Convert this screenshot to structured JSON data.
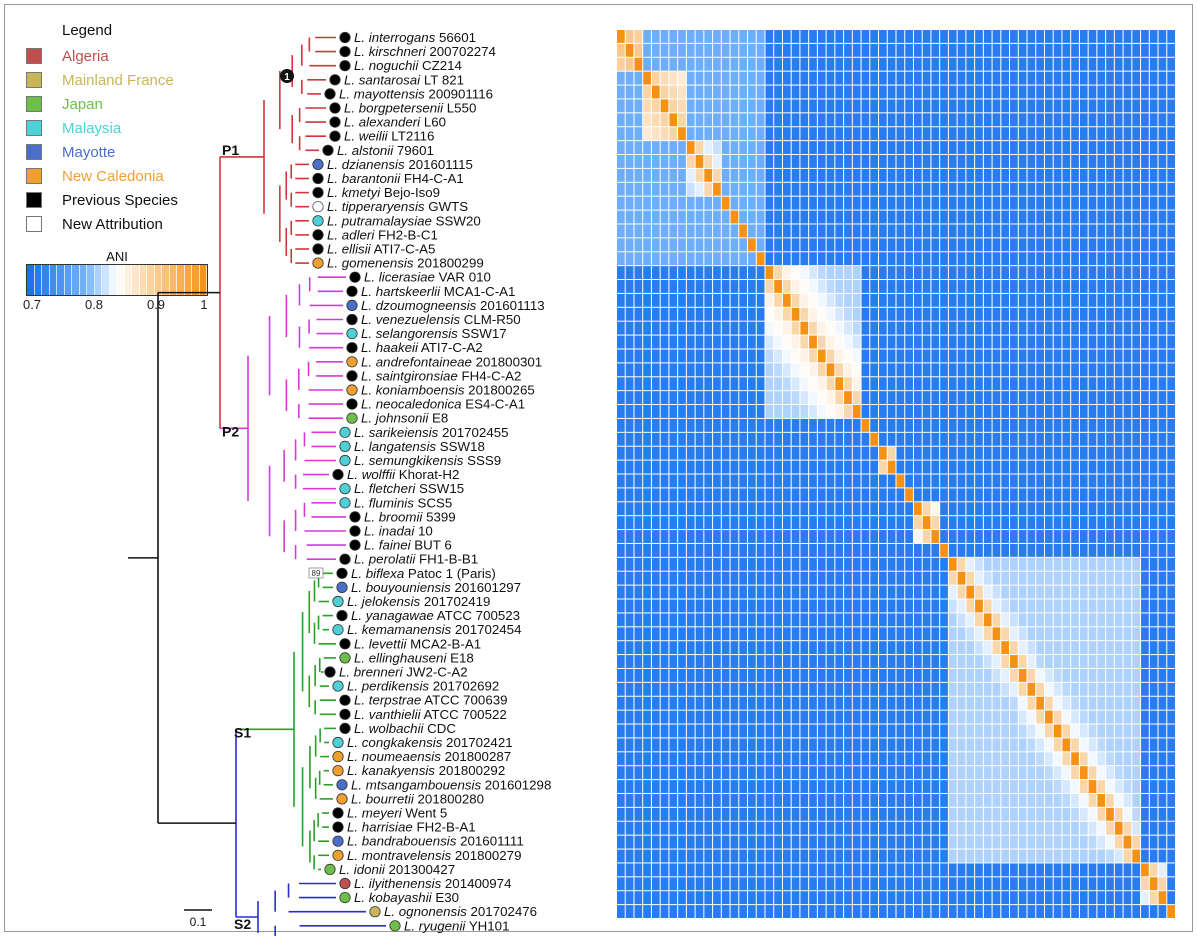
{
  "legend": {
    "title": "Legend",
    "entries": [
      {
        "label": "Algeria",
        "color": "#c0504d",
        "text_color": "#c0504d"
      },
      {
        "label": "Mainland France",
        "color": "#c8b55a",
        "text_color": "#c8b55a"
      },
      {
        "label": "Japan",
        "color": "#6cc04a",
        "text_color": "#6cc04a"
      },
      {
        "label": "Malaysia",
        "color": "#4fcfd6",
        "text_color": "#4fcfd6"
      },
      {
        "label": "Mayotte",
        "color": "#4a6fc8",
        "text_color": "#4a6fc8"
      },
      {
        "label": "New Caledonia",
        "color": "#f0a030",
        "text_color": "#f0a030"
      },
      {
        "label": "Previous Species",
        "color": "#000000",
        "text_color": "#111111"
      },
      {
        "label": "New Attribution",
        "color": "#ffffff",
        "text_color": "#111111"
      }
    ]
  },
  "ani_scale": {
    "title": "ANI",
    "tick_labels": [
      "0.7",
      "0.8",
      "0.9",
      "1"
    ],
    "min": 0.7,
    "max": 1.0
  },
  "clade_labels": [
    "P1",
    "P2",
    "S1",
    "S2"
  ],
  "node_marker": "1",
  "bootstrap_label": "89",
  "scale_bar_label": "0.1",
  "clade_colors": {
    "P1": "#d0363b",
    "P2": "#d63ad6",
    "S1": "#2aa02a",
    "S2": "#2a2ad6",
    "root": "#111111"
  },
  "species": [
    {
      "genus": "L.",
      "name": "interrogans",
      "strain": "56601",
      "dot": "#000000"
    },
    {
      "genus": "L.",
      "name": "kirschneri",
      "strain": "200702274",
      "dot": "#000000"
    },
    {
      "genus": "L.",
      "name": "noguchii",
      "strain": "CZ214",
      "dot": "#000000"
    },
    {
      "genus": "L.",
      "name": "santarosai",
      "strain": "LT 821",
      "dot": "#000000"
    },
    {
      "genus": "L.",
      "name": "mayottensis",
      "strain": "200901116",
      "dot": "#000000"
    },
    {
      "genus": "L.",
      "name": "borgpetersenii",
      "strain": "L550",
      "dot": "#000000"
    },
    {
      "genus": "L.",
      "name": "alexanderi",
      "strain": "L60",
      "dot": "#000000"
    },
    {
      "genus": "L.",
      "name": "weilii",
      "strain": "LT2116",
      "dot": "#000000"
    },
    {
      "genus": "L.",
      "name": "alstonii",
      "strain": "79601",
      "dot": "#000000"
    },
    {
      "genus": "L.",
      "name": "dzianensis",
      "strain": "201601115",
      "dot": "#4a6fc8"
    },
    {
      "genus": "L.",
      "name": "barantonii",
      "strain": "FH4-C-A1",
      "dot": "#000000"
    },
    {
      "genus": "L.",
      "name": "kmetyi",
      "strain": "Bejo-Iso9",
      "dot": "#000000"
    },
    {
      "genus": "L.",
      "name": "tipperaryensis",
      "strain": "GWTS",
      "dot": "#ffffff"
    },
    {
      "genus": "L.",
      "name": "putramalaysiae",
      "strain": "SSW20",
      "dot": "#4fcfd6"
    },
    {
      "genus": "L.",
      "name": "adleri",
      "strain": "FH2-B-C1",
      "dot": "#000000"
    },
    {
      "genus": "L.",
      "name": "ellisii",
      "strain": "ATI7-C-A5",
      "dot": "#000000"
    },
    {
      "genus": "L.",
      "name": "gomenensis",
      "strain": "201800299",
      "dot": "#f0a030"
    },
    {
      "genus": "L.",
      "name": "licerasiae",
      "strain": "VAR 010",
      "dot": "#000000"
    },
    {
      "genus": "L.",
      "name": "hartskeerlii",
      "strain": "MCA1-C-A1",
      "dot": "#000000"
    },
    {
      "genus": "L.",
      "name": "dzoumogneensis",
      "strain": "201601113",
      "dot": "#4a6fc8"
    },
    {
      "genus": "L.",
      "name": "venezuelensis",
      "strain": "CLM-R50",
      "dot": "#000000"
    },
    {
      "genus": "L.",
      "name": "selangorensis",
      "strain": "SSW17",
      "dot": "#4fcfd6"
    },
    {
      "genus": "L.",
      "name": "haakeii",
      "strain": "ATI7-C-A2",
      "dot": "#000000"
    },
    {
      "genus": "L.",
      "name": "andrefontaineae",
      "strain": "201800301",
      "dot": "#f0a030"
    },
    {
      "genus": "L.",
      "name": "saintgironsiae",
      "strain": "FH4-C-A2",
      "dot": "#000000"
    },
    {
      "genus": "L.",
      "name": "koniamboensis",
      "strain": "201800265",
      "dot": "#f0a030"
    },
    {
      "genus": "L.",
      "name": "neocaledonica",
      "strain": "ES4-C-A1",
      "dot": "#000000"
    },
    {
      "genus": "L.",
      "name": "johnsonii",
      "strain": "E8",
      "dot": "#6cc04a"
    },
    {
      "genus": "L.",
      "name": "sarikeiensis",
      "strain": "201702455",
      "dot": "#4fcfd6"
    },
    {
      "genus": "L.",
      "name": "langatensis",
      "strain": "SSW18",
      "dot": "#4fcfd6"
    },
    {
      "genus": "L.",
      "name": "semungkikensis",
      "strain": "SSS9",
      "dot": "#4fcfd6"
    },
    {
      "genus": "L.",
      "name": "wolffii",
      "strain": "Khorat-H2",
      "dot": "#000000"
    },
    {
      "genus": "L.",
      "name": "fletcheri",
      "strain": "SSW15",
      "dot": "#4fcfd6"
    },
    {
      "genus": "L.",
      "name": "fluminis",
      "strain": "SCS5",
      "dot": "#4fcfd6"
    },
    {
      "genus": "L.",
      "name": "broomii",
      "strain": "5399",
      "dot": "#000000"
    },
    {
      "genus": "L.",
      "name": "inadai",
      "strain": "10",
      "dot": "#000000"
    },
    {
      "genus": "L.",
      "name": "fainei",
      "strain": "BUT 6",
      "dot": "#000000"
    },
    {
      "genus": "L.",
      "name": "perolatii",
      "strain": "FH1-B-B1",
      "dot": "#000000"
    },
    {
      "genus": "L.",
      "name": "biflexa",
      "strain": "Patoc 1 (Paris)",
      "dot": "#000000"
    },
    {
      "genus": "L.",
      "name": "bouyouniensis",
      "strain": "201601297",
      "dot": "#4a6fc8"
    },
    {
      "genus": "L.",
      "name": "jelokensis",
      "strain": "201702419",
      "dot": "#4fcfd6"
    },
    {
      "genus": "L.",
      "name": "yanagawae",
      "strain": "ATCC 700523",
      "dot": "#000000"
    },
    {
      "genus": "L.",
      "name": "kemamanensis",
      "strain": "201702454",
      "dot": "#4fcfd6"
    },
    {
      "genus": "L.",
      "name": "levettii",
      "strain": "MCA2-B-A1",
      "dot": "#000000"
    },
    {
      "genus": "L.",
      "name": "ellinghauseni",
      "strain": "E18",
      "dot": "#6cc04a"
    },
    {
      "genus": "L.",
      "name": "brenneri",
      "strain": "JW2-C-A2",
      "dot": "#000000"
    },
    {
      "genus": "L.",
      "name": "perdikensis",
      "strain": "201702692",
      "dot": "#4fcfd6"
    },
    {
      "genus": "L.",
      "name": "terpstrae",
      "strain": "ATCC 700639",
      "dot": "#000000"
    },
    {
      "genus": "L.",
      "name": "vanthielii",
      "strain": "ATCC 700522",
      "dot": "#000000"
    },
    {
      "genus": "L.",
      "name": "wolbachii",
      "strain": "CDC",
      "dot": "#000000"
    },
    {
      "genus": "L.",
      "name": "congkakensis",
      "strain": "201702421",
      "dot": "#4fcfd6"
    },
    {
      "genus": "L.",
      "name": "noumeaensis",
      "strain": "201800287",
      "dot": "#f0a030"
    },
    {
      "genus": "L.",
      "name": "kanakyensis",
      "strain": "201800292",
      "dot": "#f0a030"
    },
    {
      "genus": "L.",
      "name": "mtsangambouensis",
      "strain": "201601298",
      "dot": "#4a6fc8"
    },
    {
      "genus": "L.",
      "name": "bourretii",
      "strain": "201800280",
      "dot": "#f0a030"
    },
    {
      "genus": "L.",
      "name": "meyeri",
      "strain": "Went 5",
      "dot": "#000000"
    },
    {
      "genus": "L.",
      "name": "harrisiae",
      "strain": "FH2-B-A1",
      "dot": "#000000"
    },
    {
      "genus": "L.",
      "name": "bandrabouensis",
      "strain": "201601111",
      "dot": "#4a6fc8"
    },
    {
      "genus": "L.",
      "name": "montravelensis",
      "strain": "201800279",
      "dot": "#f0a030"
    },
    {
      "genus": "L.",
      "name": "idonii",
      "strain": "201300427",
      "dot": "#6cc04a"
    },
    {
      "genus": "L.",
      "name": "ilyithenensis",
      "strain": "201400974",
      "dot": "#c0504d"
    },
    {
      "genus": "L.",
      "name": "kobayashii",
      "strain": "E30",
      "dot": "#6cc04a"
    },
    {
      "genus": "L.",
      "name": "ognonensis",
      "strain": "201702476",
      "dot": "#c8b55a"
    },
    {
      "genus": "L.",
      "name": "ryugenii",
      "strain": "YH101",
      "dot": "#6cc04a"
    }
  ]
}
